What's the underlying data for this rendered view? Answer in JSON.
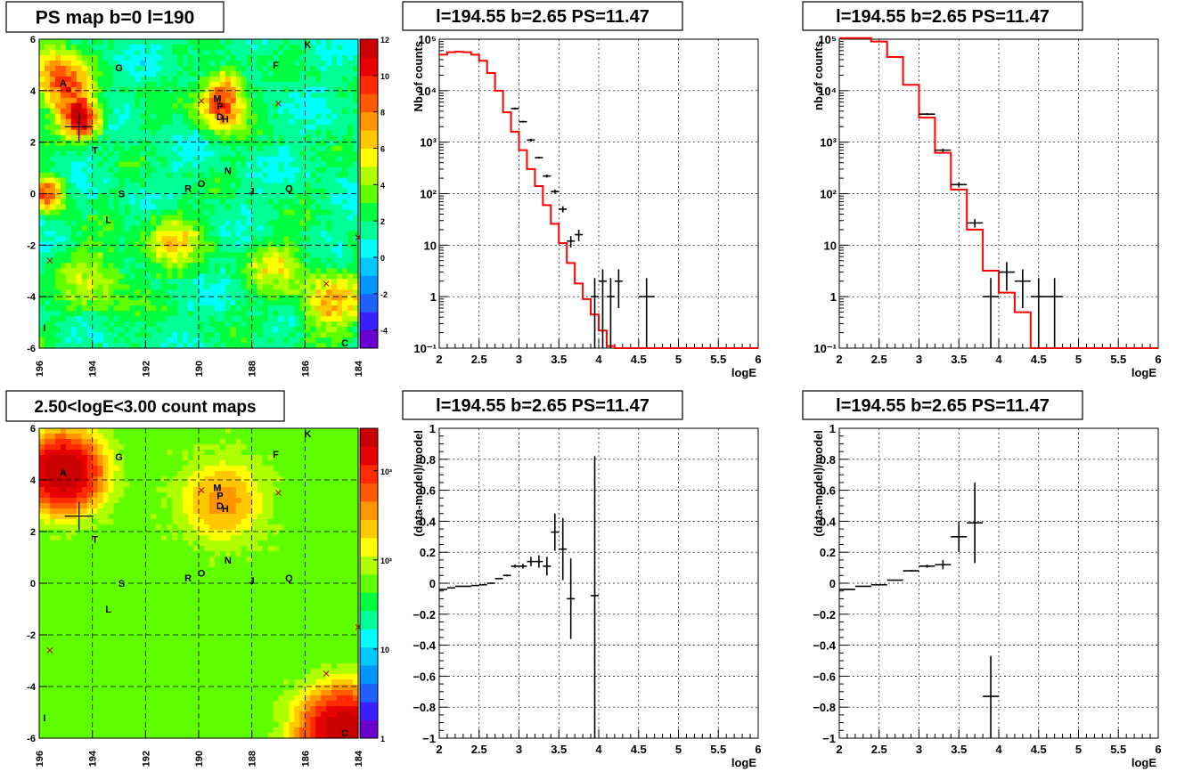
{
  "panels": [
    {
      "title": "PS map b=0 l=190",
      "type": "heatmap",
      "scale": "linear",
      "x_ticks": [
        "196",
        "194",
        "192",
        "190",
        "188",
        "186",
        "184"
      ],
      "y_ticks": [
        "6",
        "4",
        "2",
        "0",
        "-2",
        "-4",
        "-6"
      ],
      "colorbar_ticks": [
        "12",
        "10",
        "8",
        "6",
        "4",
        "2",
        "0",
        "-2",
        "-4"
      ],
      "colorbar_range": [
        -5,
        12
      ],
      "xlim": [
        196,
        184
      ],
      "ylim": [
        -6,
        6
      ],
      "sources": [
        {
          "label": "A",
          "l": 195.1,
          "b": 4.3
        },
        {
          "label": "G",
          "l": 193.0,
          "b": 4.9
        },
        {
          "label": "F",
          "l": 187.1,
          "b": 5.0
        },
        {
          "label": "K",
          "l": 185.9,
          "b": 5.8
        },
        {
          "label": "M",
          "l": 189.3,
          "b": 3.7
        },
        {
          "label": "P",
          "l": 189.2,
          "b": 3.4
        },
        {
          "label": "D",
          "l": 189.2,
          "b": 3.0
        },
        {
          "label": "H",
          "l": 189.0,
          "b": 2.9
        },
        {
          "label": "T",
          "l": 193.9,
          "b": 1.7
        },
        {
          "label": "N",
          "l": 188.9,
          "b": 0.9
        },
        {
          "label": "O",
          "l": 189.9,
          "b": 0.4
        },
        {
          "label": "R",
          "l": 190.4,
          "b": 0.2
        },
        {
          "label": "S",
          "l": 192.9,
          "b": 0.0
        },
        {
          "label": "J",
          "l": 188.0,
          "b": 0.1
        },
        {
          "label": "Q",
          "l": 186.6,
          "b": 0.2
        },
        {
          "label": "L",
          "l": 193.4,
          "b": -1.0
        },
        {
          "label": "I",
          "l": 195.8,
          "b": -5.2
        },
        {
          "label": "C",
          "l": 184.5,
          "b": -5.8
        }
      ],
      "crosses": [
        [
          189.9,
          3.6
        ],
        [
          187.0,
          3.5
        ],
        [
          195.6,
          -2.6
        ],
        [
          185.2,
          -3.5
        ],
        [
          184.0,
          -1.7
        ]
      ],
      "big_cross": [
        194.5,
        2.6
      ],
      "hotspots": [
        {
          "l": 194.4,
          "b": 2.9,
          "v": 11,
          "s": 0.5
        },
        {
          "l": 195.1,
          "b": 4.2,
          "v": 6,
          "s": 0.7
        },
        {
          "l": 189.2,
          "b": 3.3,
          "v": 7,
          "s": 0.6
        },
        {
          "l": 195.7,
          "b": 0.0,
          "v": 7,
          "s": 0.5
        },
        {
          "l": 191.0,
          "b": -1.8,
          "v": 4,
          "s": 0.8
        },
        {
          "l": 185.0,
          "b": -4.2,
          "v": 5,
          "s": 0.9
        },
        {
          "l": 187.2,
          "b": -2.8,
          "v": 3,
          "s": 0.8
        },
        {
          "l": 189.0,
          "b": 4.2,
          "v": 5,
          "s": 0.5
        },
        {
          "l": 195.6,
          "b": 5.3,
          "v": 3,
          "s": 0.8
        },
        {
          "l": 193.8,
          "b": -3.4,
          "v": 3,
          "s": 1.0
        }
      ]
    },
    {
      "title": "l=194.55 b=2.65 PS=11.47",
      "type": "line",
      "scale": "log",
      "xlabel": "logE",
      "ylabel": "Nb of counts",
      "xlim": [
        2,
        6
      ],
      "ylim": [
        0.1,
        100000
      ],
      "x_ticks": [
        "2",
        "2.5",
        "3",
        "3.5",
        "4",
        "4.5",
        "5",
        "5.5",
        "6"
      ],
      "y_ticks": [
        "10⁵",
        "10⁴",
        "10³",
        "10²",
        "10",
        "1",
        "10⁻¹"
      ],
      "model_step": {
        "edges": [
          2.0,
          2.1,
          2.2,
          2.3,
          2.4,
          2.5,
          2.6,
          2.7,
          2.8,
          2.9,
          3.0,
          3.1,
          3.2,
          3.3,
          3.4,
          3.5,
          3.6,
          3.7,
          3.8,
          3.9,
          4.0,
          4.1,
          4.2,
          4.3,
          4.4,
          6.0
        ],
        "values": [
          50000,
          56000,
          57000,
          56000,
          50000,
          38000,
          22000,
          10000,
          3800,
          1600,
          700,
          300,
          140,
          60,
          26,
          11,
          4.5,
          1.8,
          0.9,
          0.45,
          0.22,
          0.11,
          0.08,
          0.1,
          0.1
        ]
      },
      "data_points": [
        {
          "x": 2.95,
          "y": 4500,
          "lo": 4300,
          "hi": 4700,
          "xerr": 0.05
        },
        {
          "x": 3.05,
          "y": 2500,
          "lo": 2400,
          "hi": 2600,
          "xerr": 0.05
        },
        {
          "x": 3.15,
          "y": 1100,
          "lo": 1030,
          "hi": 1170,
          "xerr": 0.05
        },
        {
          "x": 3.25,
          "y": 500,
          "lo": 480,
          "hi": 520,
          "xerr": 0.05
        },
        {
          "x": 3.35,
          "y": 220,
          "lo": 205,
          "hi": 235,
          "xerr": 0.05
        },
        {
          "x": 3.45,
          "y": 110,
          "lo": 100,
          "hi": 120,
          "xerr": 0.05
        },
        {
          "x": 3.55,
          "y": 50,
          "lo": 43,
          "hi": 57,
          "xerr": 0.05
        },
        {
          "x": 3.65,
          "y": 12,
          "lo": 9,
          "hi": 15,
          "xerr": 0.05
        },
        {
          "x": 3.75,
          "y": 16,
          "lo": 12,
          "hi": 20,
          "xerr": 0.05
        },
        {
          "x": 3.95,
          "y": 1,
          "lo": 0.1,
          "hi": 2.3,
          "xerr": 0.05
        },
        {
          "x": 4.05,
          "y": 2,
          "lo": 0.1,
          "hi": 3.4,
          "xerr": 0.05
        },
        {
          "x": 4.15,
          "y": 1,
          "lo": 0.1,
          "hi": 2.3,
          "xerr": 0.05
        },
        {
          "x": 4.25,
          "y": 2,
          "lo": 0.6,
          "hi": 3.4,
          "xerr": 0.05
        },
        {
          "x": 4.6,
          "y": 1,
          "lo": 0.1,
          "hi": 2.3,
          "xerr": 0.1
        }
      ]
    },
    {
      "title": "l=194.55 b=2.65 PS=11.47",
      "type": "line",
      "scale": "log",
      "xlabel": "logE",
      "ylabel": "nb of counts",
      "xlim": [
        2,
        6
      ],
      "ylim": [
        0.1,
        100000
      ],
      "x_ticks": [
        "2",
        "2.5",
        "3",
        "3.5",
        "4",
        "4.5",
        "5",
        "5.5",
        "6"
      ],
      "y_ticks": [
        "10⁵",
        "10⁴",
        "10³",
        "10²",
        "10",
        "1",
        "10⁻¹"
      ],
      "model_step": {
        "edges": [
          2.0,
          2.4,
          2.6,
          2.8,
          3.0,
          3.2,
          3.4,
          3.6,
          3.8,
          4.0,
          4.2,
          4.4,
          6.0
        ],
        "values": [
          105000,
          90000,
          45000,
          13000,
          3000,
          620,
          120,
          20,
          3.2,
          1.2,
          0.5,
          0.1
        ]
      },
      "data_points": [
        {
          "x": 3.1,
          "y": 3500,
          "lo": 3350,
          "hi": 3650,
          "xerr": 0.1
        },
        {
          "x": 3.3,
          "y": 700,
          "lo": 650,
          "hi": 750,
          "xerr": 0.1
        },
        {
          "x": 3.5,
          "y": 150,
          "lo": 135,
          "hi": 165,
          "xerr": 0.1
        },
        {
          "x": 3.7,
          "y": 27,
          "lo": 22,
          "hi": 32,
          "xerr": 0.1
        },
        {
          "x": 3.9,
          "y": 1,
          "lo": 0.1,
          "hi": 2.3,
          "xerr": 0.1
        },
        {
          "x": 4.1,
          "y": 3,
          "lo": 1.3,
          "hi": 4.7,
          "xerr": 0.1
        },
        {
          "x": 4.3,
          "y": 2,
          "lo": 0.6,
          "hi": 3.4,
          "xerr": 0.1
        },
        {
          "x": 4.5,
          "y": 1,
          "lo": 0.1,
          "hi": 2.3,
          "xerr": 0.1
        },
        {
          "x": 4.7,
          "y": 1,
          "lo": 0.1,
          "hi": 2.3,
          "xerr": 0.1
        }
      ]
    },
    {
      "title": "2.50<logE<3.00 count maps",
      "type": "heatmap",
      "scale": "log",
      "x_ticks": [
        "196",
        "194",
        "192",
        "190",
        "188",
        "186",
        "184"
      ],
      "y_ticks": [
        "6",
        "4",
        "2",
        "0",
        "-2",
        "-4",
        "-6"
      ],
      "colorbar_ticks": [
        "10³",
        "10²",
        "10",
        "1"
      ],
      "colorbar_range": [
        1,
        3000
      ],
      "xlim": [
        196,
        184
      ],
      "ylim": [
        -6,
        6
      ],
      "sources": [
        {
          "label": "A",
          "l": 195.1,
          "b": 4.3
        },
        {
          "label": "G",
          "l": 193.0,
          "b": 4.9
        },
        {
          "label": "F",
          "l": 187.1,
          "b": 5.0
        },
        {
          "label": "K",
          "l": 185.9,
          "b": 5.8
        },
        {
          "label": "M",
          "l": 189.3,
          "b": 3.7
        },
        {
          "label": "P",
          "l": 189.2,
          "b": 3.4
        },
        {
          "label": "D",
          "l": 189.2,
          "b": 3.0
        },
        {
          "label": "H",
          "l": 189.0,
          "b": 2.9
        },
        {
          "label": "T",
          "l": 193.9,
          "b": 1.7
        },
        {
          "label": "N",
          "l": 188.9,
          "b": 0.9
        },
        {
          "label": "O",
          "l": 189.9,
          "b": 0.4
        },
        {
          "label": "R",
          "l": 190.4,
          "b": 0.2
        },
        {
          "label": "S",
          "l": 192.9,
          "b": 0.0
        },
        {
          "label": "J",
          "l": 188.0,
          "b": 0.1
        },
        {
          "label": "Q",
          "l": 186.6,
          "b": 0.2
        },
        {
          "label": "L",
          "l": 193.4,
          "b": -1.0
        },
        {
          "label": "I",
          "l": 195.8,
          "b": -5.2
        },
        {
          "label": "C",
          "l": 184.5,
          "b": -5.8
        }
      ],
      "crosses": [
        [
          189.9,
          3.6
        ],
        [
          187.0,
          3.5
        ],
        [
          195.6,
          -2.6
        ],
        [
          185.2,
          -3.5
        ],
        [
          184.0,
          -1.7
        ]
      ],
      "big_cross": [
        194.5,
        2.6
      ],
      "hotspots": [
        {
          "l": 195.1,
          "b": 4.3,
          "v": 3000,
          "s": 0.7
        },
        {
          "l": 189.1,
          "b": 3.2,
          "v": 300,
          "s": 0.8
        },
        {
          "l": 184.5,
          "b": -5.8,
          "v": 3000,
          "s": 0.8
        }
      ],
      "background": 60
    },
    {
      "title": "l=194.55 b=2.65 PS=11.47",
      "type": "scatter",
      "scale": "linear",
      "xlabel": "logE",
      "ylabel": "(data-model)/model",
      "xlim": [
        2,
        6
      ],
      "ylim": [
        -1,
        1
      ],
      "x_ticks": [
        "2",
        "2.5",
        "3",
        "3.5",
        "4",
        "4.5",
        "5",
        "5.5",
        "6"
      ],
      "y_ticks": [
        "1",
        "0.8",
        "0.6",
        "0.4",
        "0.2",
        "0",
        "−0.2",
        "−0.4",
        "−0.6",
        "−0.8",
        "−1"
      ],
      "data_points": [
        {
          "x": 2.05,
          "y": -0.04,
          "lo": -0.042,
          "hi": -0.038,
          "xerr": 0.05
        },
        {
          "x": 2.15,
          "y": -0.03,
          "lo": -0.032,
          "hi": -0.028,
          "xerr": 0.05
        },
        {
          "x": 2.25,
          "y": -0.02,
          "lo": -0.022,
          "hi": -0.018,
          "xerr": 0.05
        },
        {
          "x": 2.35,
          "y": -0.02,
          "lo": -0.022,
          "hi": -0.018,
          "xerr": 0.05
        },
        {
          "x": 2.45,
          "y": -0.015,
          "lo": -0.017,
          "hi": -0.013,
          "xerr": 0.05
        },
        {
          "x": 2.55,
          "y": -0.01,
          "lo": -0.012,
          "hi": -0.008,
          "xerr": 0.05
        },
        {
          "x": 2.65,
          "y": 0.0,
          "lo": -0.003,
          "hi": 0.003,
          "xerr": 0.05
        },
        {
          "x": 2.75,
          "y": 0.03,
          "lo": 0.026,
          "hi": 0.034,
          "xerr": 0.05
        },
        {
          "x": 2.85,
          "y": 0.05,
          "lo": 0.044,
          "hi": 0.056,
          "xerr": 0.05
        },
        {
          "x": 2.95,
          "y": 0.11,
          "lo": 0.1,
          "hi": 0.12,
          "xerr": 0.05
        },
        {
          "x": 3.05,
          "y": 0.11,
          "lo": 0.095,
          "hi": 0.125,
          "xerr": 0.05
        },
        {
          "x": 3.15,
          "y": 0.14,
          "lo": 0.11,
          "hi": 0.17,
          "xerr": 0.05
        },
        {
          "x": 3.25,
          "y": 0.14,
          "lo": 0.1,
          "hi": 0.18,
          "xerr": 0.05
        },
        {
          "x": 3.35,
          "y": 0.11,
          "lo": 0.05,
          "hi": 0.17,
          "xerr": 0.05
        },
        {
          "x": 3.45,
          "y": 0.33,
          "lo": 0.21,
          "hi": 0.45,
          "xerr": 0.05
        },
        {
          "x": 3.55,
          "y": 0.22,
          "lo": 0.02,
          "hi": 0.42,
          "xerr": 0.05
        },
        {
          "x": 3.65,
          "y": -0.1,
          "lo": -0.36,
          "hi": 0.16,
          "xerr": 0.05
        },
        {
          "x": 3.95,
          "y": -0.08,
          "lo": -1.0,
          "hi": 0.82,
          "xerr": 0.05
        }
      ]
    },
    {
      "title": "l=194.55 b=2.65 PS=11.47",
      "type": "scatter",
      "scale": "linear",
      "xlabel": "logE",
      "ylabel": "(data-model)/model",
      "xlim": [
        2,
        6
      ],
      "ylim": [
        -1,
        1
      ],
      "x_ticks": [
        "2",
        "2.5",
        "3",
        "3.5",
        "4",
        "4.5",
        "5",
        "5.5",
        "6"
      ],
      "y_ticks": [
        "1",
        "0.8",
        "0.6",
        "0.4",
        "0.2",
        "0",
        "−0.2",
        "−0.4",
        "−0.6",
        "−0.8",
        "−1"
      ],
      "data_points": [
        {
          "x": 2.1,
          "y": -0.04,
          "lo": -0.042,
          "hi": -0.038,
          "xerr": 0.1
        },
        {
          "x": 2.3,
          "y": -0.02,
          "lo": -0.022,
          "hi": -0.018,
          "xerr": 0.1
        },
        {
          "x": 2.5,
          "y": -0.01,
          "lo": -0.012,
          "hi": -0.008,
          "xerr": 0.1
        },
        {
          "x": 2.7,
          "y": 0.02,
          "lo": 0.017,
          "hi": 0.023,
          "xerr": 0.1
        },
        {
          "x": 2.9,
          "y": 0.08,
          "lo": 0.075,
          "hi": 0.085,
          "xerr": 0.1
        },
        {
          "x": 3.1,
          "y": 0.11,
          "lo": 0.1,
          "hi": 0.12,
          "xerr": 0.1
        },
        {
          "x": 3.3,
          "y": 0.12,
          "lo": 0.09,
          "hi": 0.15,
          "xerr": 0.1
        },
        {
          "x": 3.5,
          "y": 0.3,
          "lo": 0.2,
          "hi": 0.4,
          "xerr": 0.1
        },
        {
          "x": 3.7,
          "y": 0.39,
          "lo": 0.13,
          "hi": 0.65,
          "xerr": 0.1
        },
        {
          "x": 3.9,
          "y": -0.73,
          "lo": -1.0,
          "hi": -0.47,
          "xerr": 0.1
        }
      ]
    }
  ]
}
